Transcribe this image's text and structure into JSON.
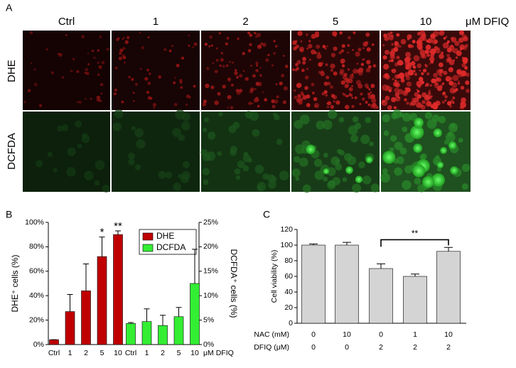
{
  "panel_labels": [
    "A",
    "B",
    "C"
  ],
  "panel_a": {
    "columns": [
      "Ctrl",
      "1",
      "2",
      "5",
      "10"
    ],
    "unit": "μM DFIQ",
    "rows": [
      "DHE",
      "DCFDA"
    ]
  },
  "chart_data": [
    {
      "type": "bar",
      "categories": [
        "Ctrl",
        "1",
        "2",
        "5",
        "10"
      ],
      "x_label": "μM DFIQ",
      "y_label": "DHE⁺ cells (%)",
      "y2_label": "DCFDA⁺ cells (%)",
      "ylim": [
        0,
        100
      ],
      "yticks": [
        {
          "value": 0,
          "label": "0%"
        },
        {
          "value": 20,
          "label": "20%"
        },
        {
          "value": 40,
          "label": "40%"
        },
        {
          "value": 60,
          "label": "60%"
        },
        {
          "value": 80,
          "label": "80%"
        },
        {
          "value": 100,
          "label": "100%"
        }
      ],
      "y2lim": [
        0,
        25
      ],
      "y2ticks": [
        {
          "value": 0,
          "label": "0%"
        },
        {
          "value": 5,
          "label": "5%"
        },
        {
          "value": 10,
          "label": "10%"
        },
        {
          "value": 15,
          "label": "15%"
        },
        {
          "value": 20,
          "label": "20%"
        },
        {
          "value": 25,
          "label": "25%"
        }
      ],
      "legend": "upper right",
      "series": [
        {
          "name": "DHE",
          "color": "#c00000",
          "values": [
            4,
            27,
            44,
            72,
            90
          ],
          "errors": [
            0,
            14,
            22,
            16,
            3
          ],
          "significance": [
            null,
            null,
            null,
            "*",
            "**"
          ]
        },
        {
          "name": "DCFDA",
          "color": "#33ee33",
          "axis": "y2",
          "values": [
            4.3,
            4.7,
            3.9,
            5.7,
            12.5
          ],
          "errors": [
            0.2,
            2.6,
            2.1,
            1.9,
            7
          ]
        }
      ]
    },
    {
      "type": "bar",
      "y_label": "Cell viability (%)",
      "ylim": [
        0,
        120
      ],
      "yticks": [
        0,
        20,
        40,
        60,
        80,
        100,
        120
      ],
      "color": "#d4d4d4",
      "values": [
        100,
        100,
        70,
        60,
        92
      ],
      "errors": [
        1.5,
        3.5,
        6,
        3,
        5
      ],
      "table_rows": [
        {
          "label": "NAC (mM)",
          "values": [
            0,
            10,
            0,
            1,
            10
          ]
        },
        {
          "label": "DFIQ (μM)",
          "values": [
            0,
            0,
            2,
            2,
            2
          ]
        }
      ],
      "annotation": "**"
    }
  ]
}
